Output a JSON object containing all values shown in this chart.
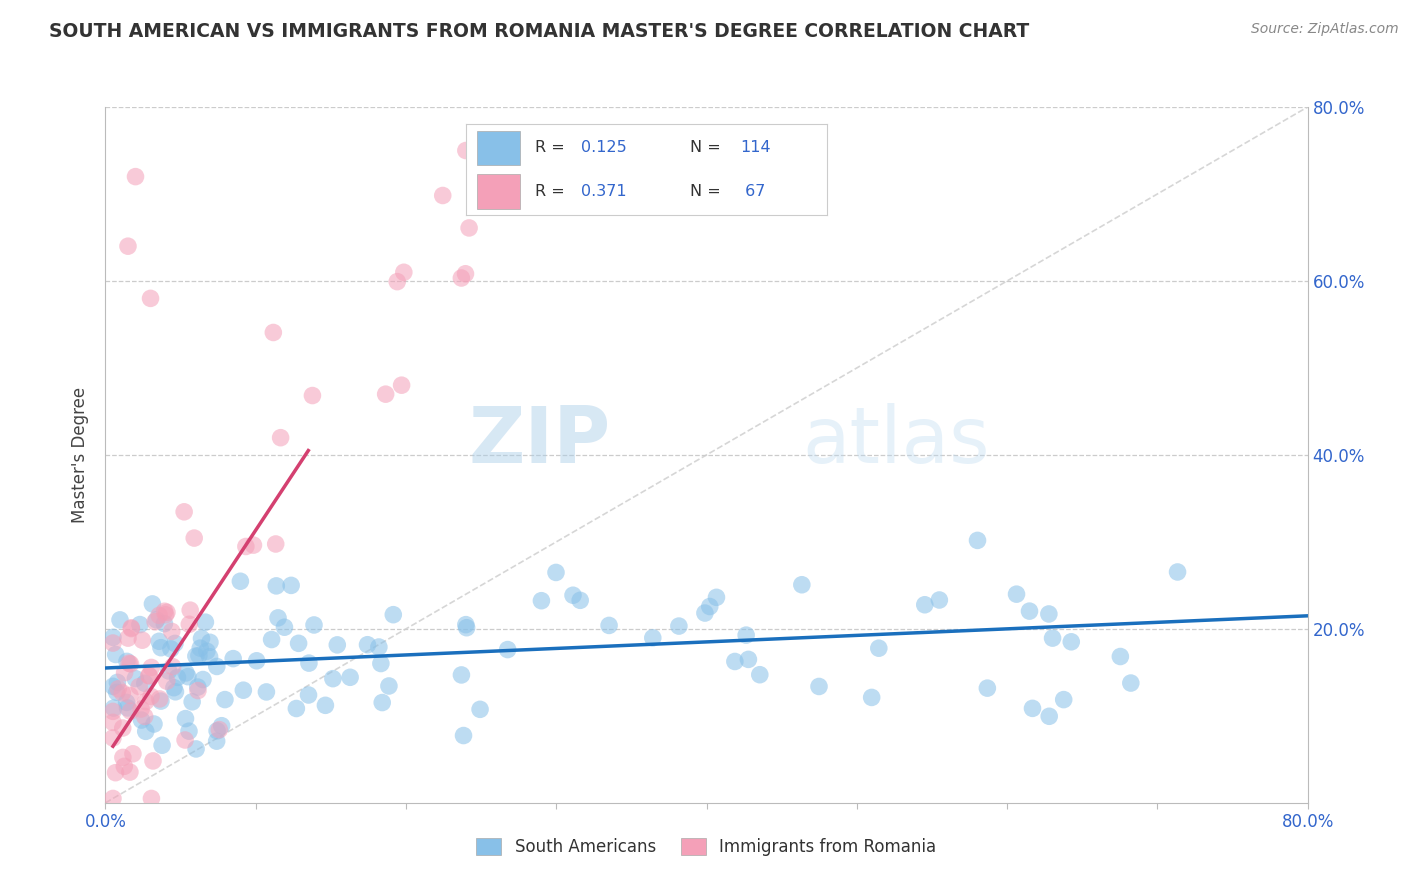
{
  "title": "SOUTH AMERICAN VS IMMIGRANTS FROM ROMANIA MASTER'S DEGREE CORRELATION CHART",
  "source": "Source: ZipAtlas.com",
  "ylabel": "Master's Degree",
  "xlim": [
    0.0,
    0.8
  ],
  "ylim": [
    0.0,
    0.8
  ],
  "color_blue": "#88c0e8",
  "color_pink": "#f4a0b8",
  "color_blue_line": "#1a6fbd",
  "color_pink_line": "#d44070",
  "color_diag_line": "#cccccc",
  "background_color": "#ffffff",
  "grid_color": "#cccccc",
  "blue_line_x": [
    0.0,
    0.8
  ],
  "blue_line_y": [
    0.155,
    0.215
  ],
  "pink_line_x": [
    0.005,
    0.135
  ],
  "pink_line_y": [
    0.065,
    0.405
  ],
  "diag_line_x": [
    0.0,
    0.8
  ],
  "diag_line_y": [
    0.0,
    0.8
  ]
}
